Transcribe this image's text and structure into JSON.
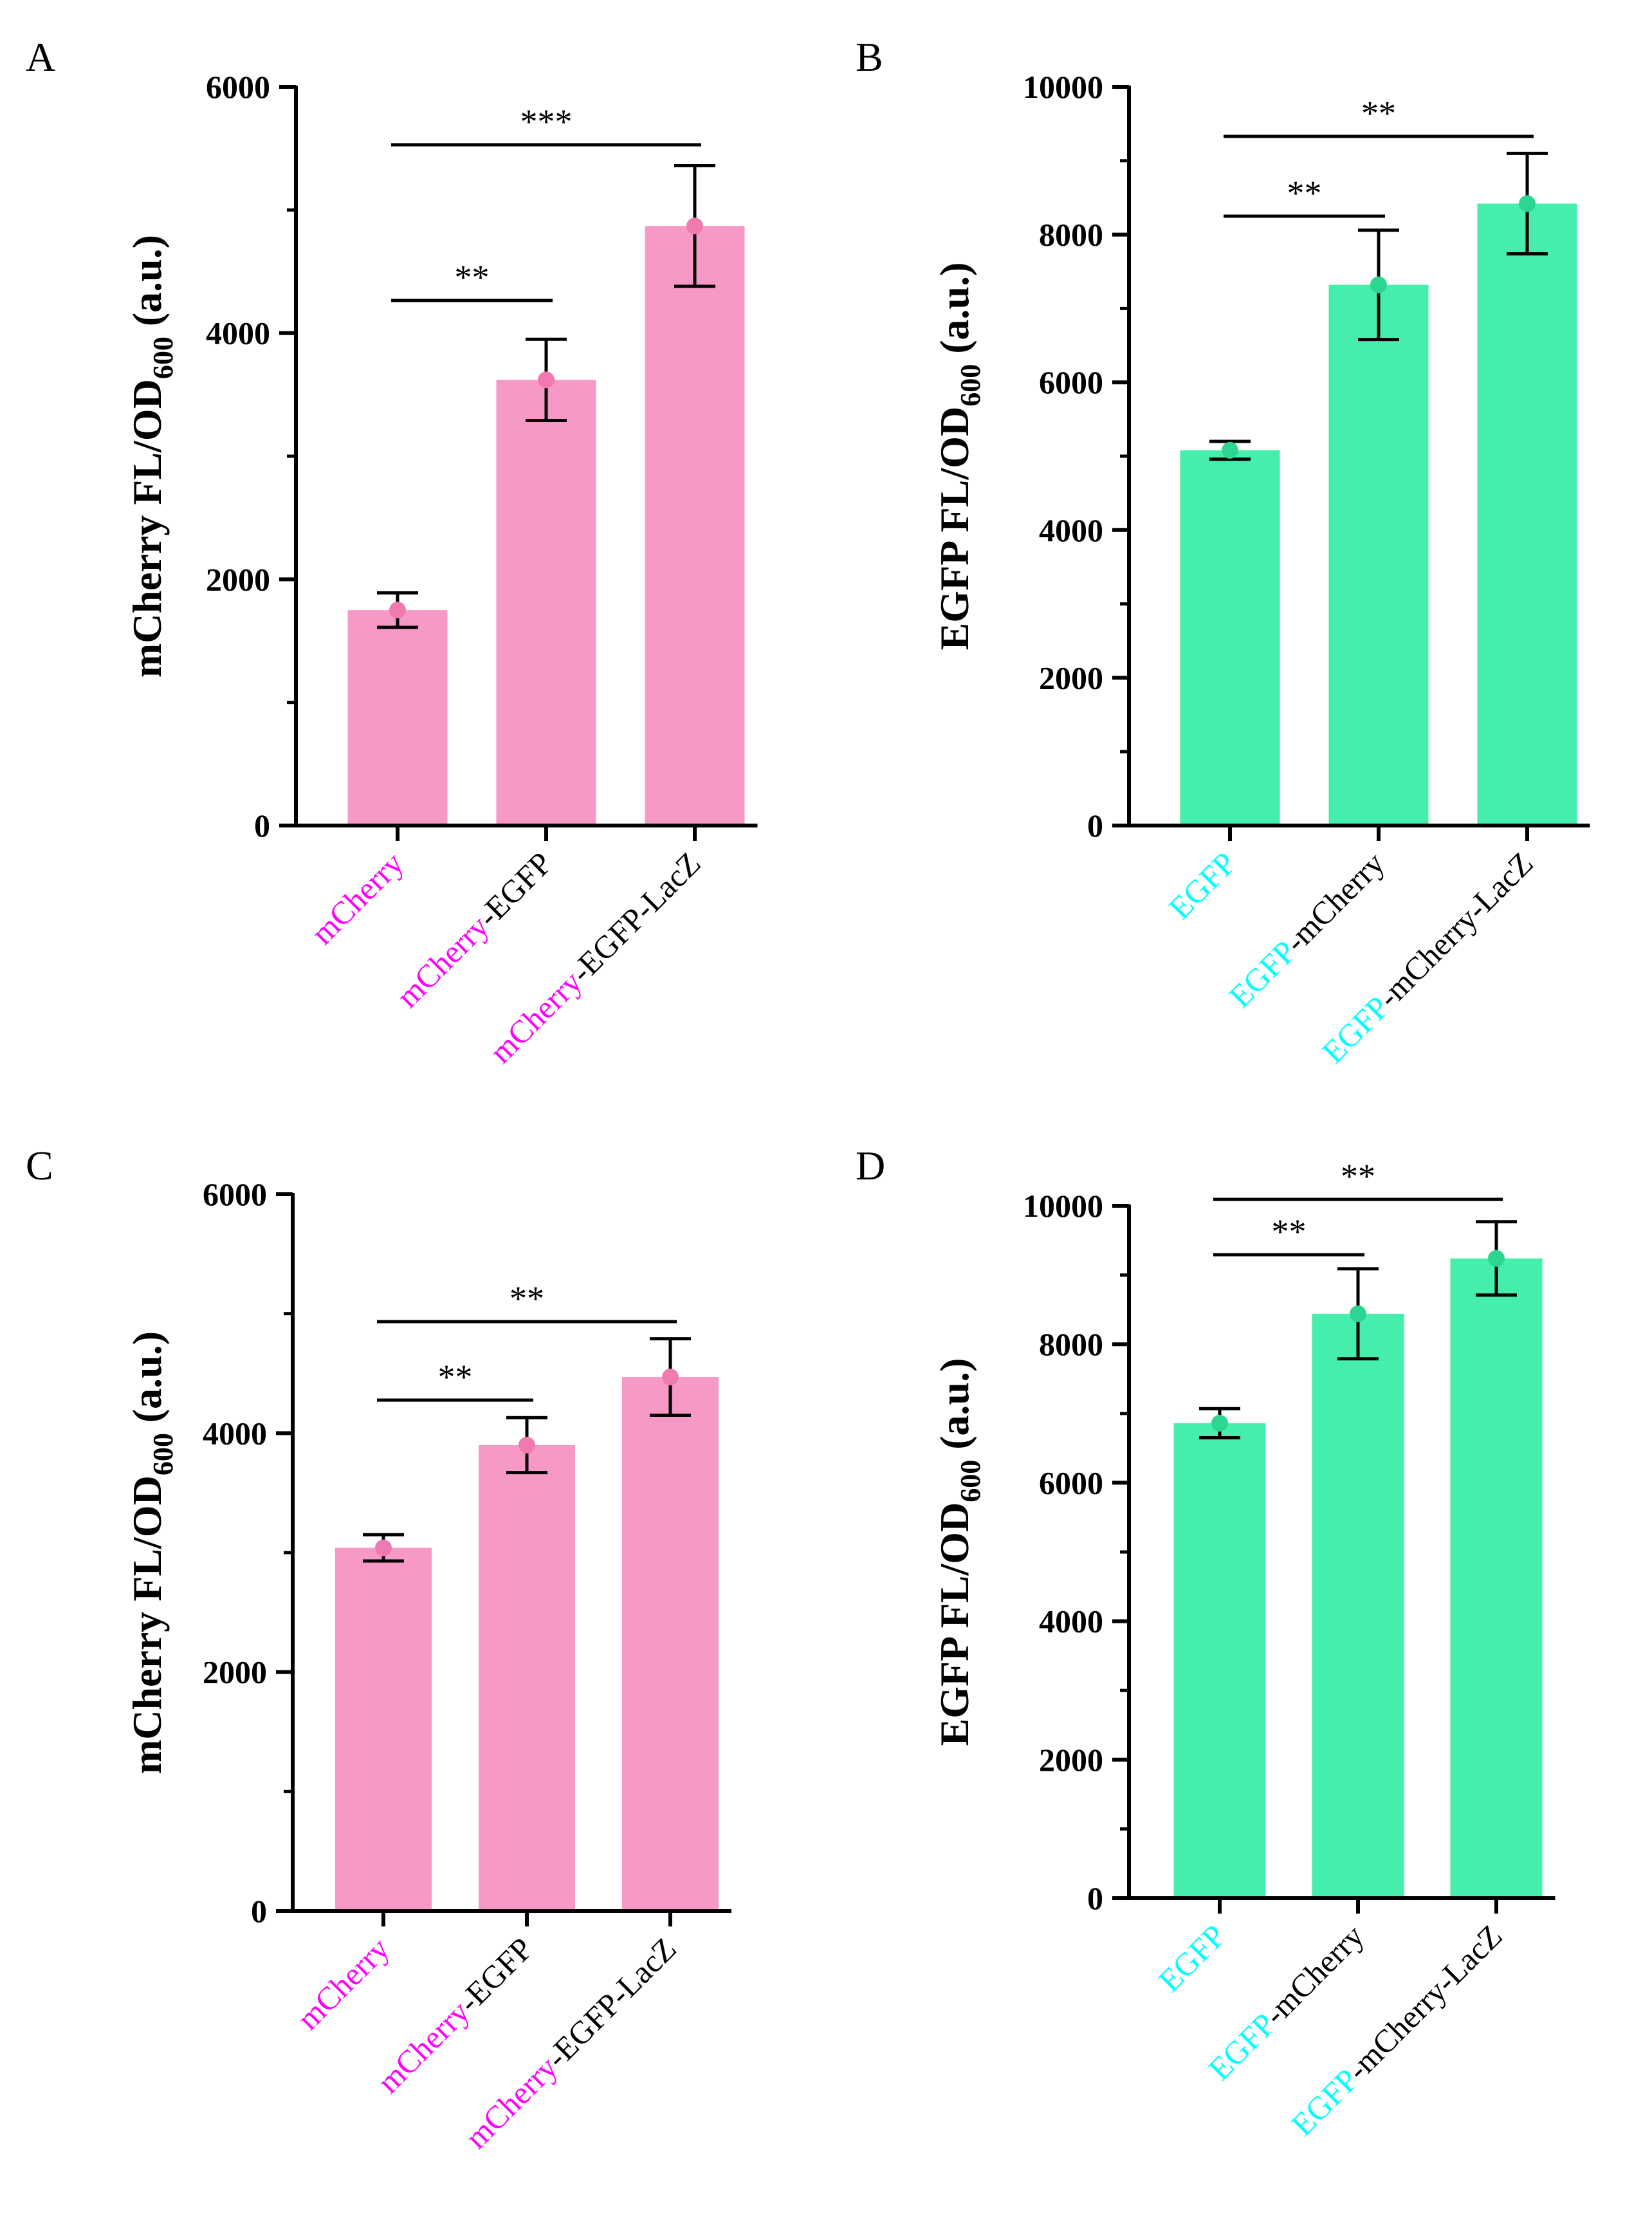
{
  "chart_data": [
    {
      "panel": "A",
      "type": "bar",
      "ylabel": {
        "main": "mCherry FL/OD",
        "sub": "600",
        "suffix": " (a.u.)"
      },
      "ylim": [
        0,
        6000
      ],
      "yticks": [
        "0",
        "2000",
        "4000",
        "6000"
      ],
      "ytick_values": [
        0,
        2000,
        4000,
        6000
      ],
      "minor_step": 1000,
      "bar_color": "#F799C6",
      "point_color": "#F07AB0",
      "highlight_color": "#FF00FF",
      "categories": [
        {
          "parts": [
            {
              "text": "mCherry",
              "hl": true
            }
          ]
        },
        {
          "parts": [
            {
              "text": "mCherry",
              "hl": true
            },
            {
              "text": "-EGFP",
              "hl": false
            }
          ]
        },
        {
          "parts": [
            {
              "text": "mCherry",
              "hl": true
            },
            {
              "text": "-EGFP-LacZ",
              "hl": false
            }
          ]
        }
      ],
      "values": [
        1750,
        3620,
        4870
      ],
      "errors": [
        140,
        330,
        490
      ],
      "significance": [
        {
          "from": 0,
          "to": 1,
          "label": "**"
        },
        {
          "from": 0,
          "to": 2,
          "label": "***"
        }
      ]
    },
    {
      "panel": "B",
      "type": "bar",
      "ylabel": {
        "main": "EGFP FL/OD",
        "sub": "600",
        "suffix": " (a.u.)"
      },
      "ylim": [
        0,
        10000
      ],
      "yticks": [
        "0",
        "2000",
        "4000",
        "6000",
        "8000",
        "10000"
      ],
      "ytick_values": [
        0,
        2000,
        4000,
        6000,
        8000,
        10000
      ],
      "minor_step": 1000,
      "bar_color": "#45EEAA",
      "point_color": "#2CD690",
      "highlight_color": "#00FFFF",
      "categories": [
        {
          "parts": [
            {
              "text": "EGFP",
              "hl": true
            }
          ]
        },
        {
          "parts": [
            {
              "text": "EGFP",
              "hl": true
            },
            {
              "text": "-mCherry",
              "hl": false
            }
          ]
        },
        {
          "parts": [
            {
              "text": "EGFP",
              "hl": true
            },
            {
              "text": "-mCherry-LacZ",
              "hl": false
            }
          ]
        }
      ],
      "values": [
        5080,
        7320,
        8420
      ],
      "errors": [
        120,
        740,
        680
      ],
      "significance": [
        {
          "from": 0,
          "to": 1,
          "label": "**"
        },
        {
          "from": 0,
          "to": 2,
          "label": "**"
        }
      ]
    },
    {
      "panel": "C",
      "type": "bar",
      "ylabel": {
        "main": "mCherry FL/OD",
        "sub": "600",
        "suffix": " (a.u.)"
      },
      "ylim": [
        0,
        6000
      ],
      "yticks": [
        "0",
        "2000",
        "4000",
        "6000"
      ],
      "ytick_values": [
        0,
        2000,
        4000,
        6000
      ],
      "minor_step": 1000,
      "bar_color": "#F799C6",
      "point_color": "#F07AB0",
      "highlight_color": "#FF00FF",
      "categories": [
        {
          "parts": [
            {
              "text": "mCherry",
              "hl": true
            }
          ]
        },
        {
          "parts": [
            {
              "text": "mCherry",
              "hl": true
            },
            {
              "text": "-EGFP",
              "hl": false
            }
          ]
        },
        {
          "parts": [
            {
              "text": "mCherry",
              "hl": true
            },
            {
              "text": "-EGFP-LacZ",
              "hl": false
            }
          ]
        }
      ],
      "values": [
        3040,
        3900,
        4470
      ],
      "errors": [
        110,
        230,
        320
      ],
      "significance": [
        {
          "from": 0,
          "to": 1,
          "label": "**"
        },
        {
          "from": 0,
          "to": 2,
          "label": "**"
        }
      ]
    },
    {
      "panel": "D",
      "type": "bar",
      "ylabel": {
        "main": "EGFP FL/OD",
        "sub": "600",
        "suffix": " (a.u.)"
      },
      "ylim": [
        0,
        10000
      ],
      "yticks": [
        "0",
        "2000",
        "4000",
        "6000",
        "8000",
        "10000"
      ],
      "ytick_values": [
        0,
        2000,
        4000,
        6000,
        8000,
        10000
      ],
      "minor_step": 1000,
      "bar_color": "#45EEAA",
      "point_color": "#2CD690",
      "highlight_color": "#00FFFF",
      "categories": [
        {
          "parts": [
            {
              "text": "EGFP",
              "hl": true
            }
          ]
        },
        {
          "parts": [
            {
              "text": "EGFP",
              "hl": true
            },
            {
              "text": "-mCherry",
              "hl": false
            }
          ]
        },
        {
          "parts": [
            {
              "text": "EGFP",
              "hl": true
            },
            {
              "text": "-mCherry-LacZ",
              "hl": false
            }
          ]
        }
      ],
      "values": [
        6860,
        8440,
        9240
      ],
      "errors": [
        210,
        650,
        530
      ],
      "significance": [
        {
          "from": 0,
          "to": 1,
          "label": "**"
        },
        {
          "from": 0,
          "to": 2,
          "label": "**"
        }
      ]
    }
  ]
}
